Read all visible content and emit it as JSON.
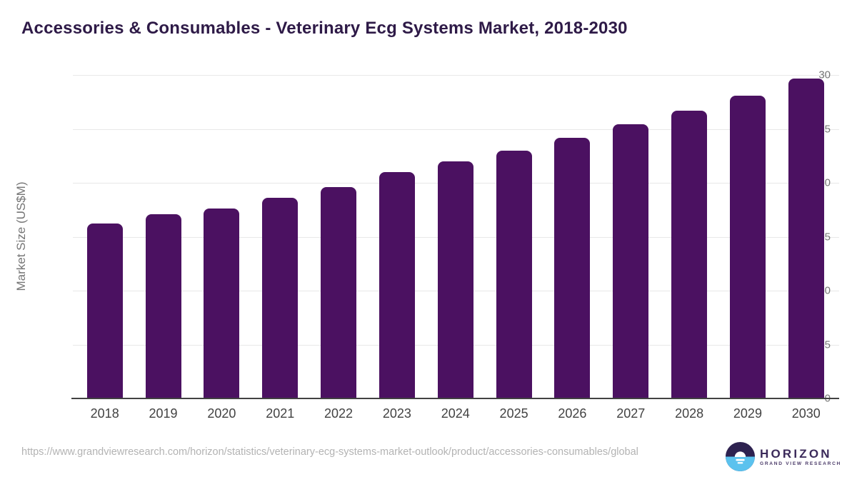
{
  "title": "Accessories & Consumables - Veterinary Ecg Systems Market, 2018-2030",
  "footer": {
    "source_url": "https://www.grandviewresearch.com/horizon/statistics/veterinary-ecg-systems-market-outlook/product/accessories-consumables/global",
    "logo": {
      "name": "HORIZON",
      "tagline": "GRAND VIEW RESEARCH"
    }
  },
  "colors": {
    "bar": "#4b1161",
    "title_text": "#2e1a47",
    "axis_line": "#424242",
    "gridline": "#e8e8e8",
    "y_tick_text": "#757575",
    "x_tick_text": "#424242",
    "url_text": "#b3b3b3",
    "logo_dark": "#2e2250",
    "logo_blue": "#5bc2ee"
  },
  "chart_data": {
    "type": "bar",
    "title": "Accessories & Consumables - Veterinary Ecg Systems Market, 2018-2030",
    "categories": [
      "2018",
      "2019",
      "2020",
      "2021",
      "2022",
      "2023",
      "2024",
      "2025",
      "2026",
      "2027",
      "2028",
      "2029",
      "2030"
    ],
    "values": [
      16.2,
      17.1,
      17.6,
      18.6,
      19.6,
      21.0,
      22.0,
      23.0,
      24.2,
      25.4,
      26.7,
      28.1,
      29.7
    ],
    "xlabel": "",
    "ylabel": "Market Size (US$M)",
    "ylim": [
      0,
      30
    ],
    "yticks": [
      0,
      5,
      10,
      15,
      20,
      25,
      30
    ],
    "grid": "horizontal",
    "legend": "none",
    "bar_corner_radius": "rounded-top"
  }
}
